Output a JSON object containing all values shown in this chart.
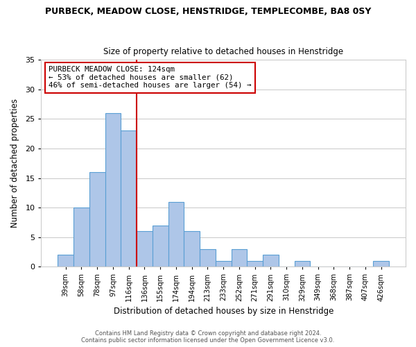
{
  "title": "PURBECK, MEADOW CLOSE, HENSTRIDGE, TEMPLECOMBE, BA8 0SY",
  "subtitle": "Size of property relative to detached houses in Henstridge",
  "xlabel": "Distribution of detached houses by size in Henstridge",
  "ylabel": "Number of detached properties",
  "footer_line1": "Contains HM Land Registry data © Crown copyright and database right 2024.",
  "footer_line2": "Contains public sector information licensed under the Open Government Licence v3.0.",
  "bins": [
    "39sqm",
    "58sqm",
    "78sqm",
    "97sqm",
    "116sqm",
    "136sqm",
    "155sqm",
    "174sqm",
    "194sqm",
    "213sqm",
    "233sqm",
    "252sqm",
    "271sqm",
    "291sqm",
    "310sqm",
    "329sqm",
    "349sqm",
    "368sqm",
    "387sqm",
    "407sqm",
    "426sqm"
  ],
  "values": [
    2,
    10,
    16,
    26,
    23,
    6,
    7,
    11,
    6,
    3,
    1,
    3,
    1,
    2,
    0,
    1,
    0,
    0,
    0,
    0,
    1
  ],
  "bar_color": "#aec6e8",
  "bar_edge_color": "#5a9fd4",
  "reference_line_color": "#cc0000",
  "annotation_text_line1": "PURBECK MEADOW CLOSE: 124sqm",
  "annotation_text_line2": "← 53% of detached houses are smaller (62)",
  "annotation_text_line3": "46% of semi-detached houses are larger (54) →",
  "annotation_box_edge_color": "#cc0000",
  "ylim": [
    0,
    35
  ],
  "yticks": [
    0,
    5,
    10,
    15,
    20,
    25,
    30,
    35
  ],
  "background_color": "#ffffff",
  "grid_color": "#c8c8c8"
}
